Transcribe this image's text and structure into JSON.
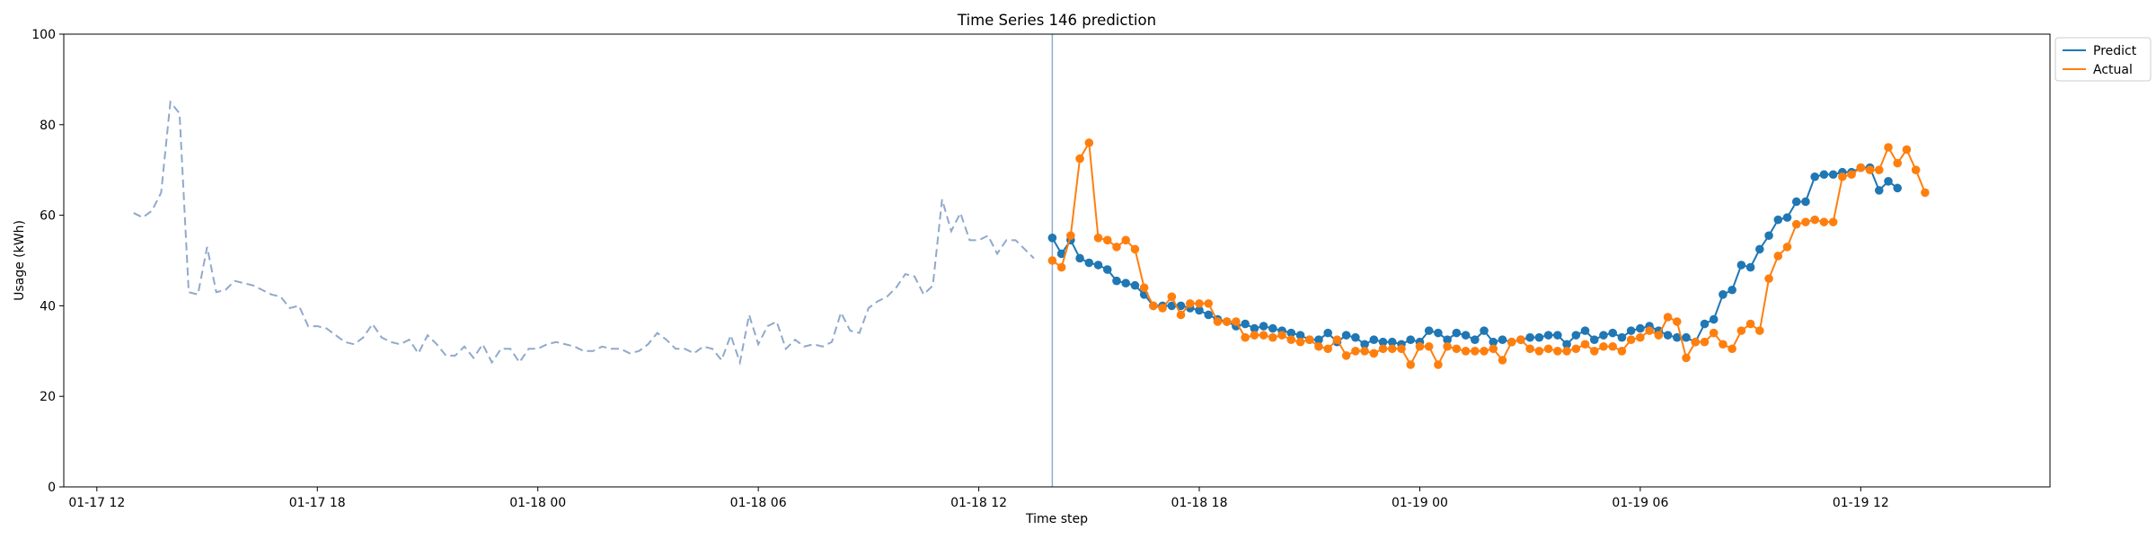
{
  "chart_data": {
    "type": "line",
    "title": "Time Series 146 prediction",
    "xlabel": "Time step",
    "ylabel": "Usage (kWh)",
    "ylim": [
      0,
      100
    ],
    "yticks": [
      0,
      20,
      40,
      60,
      80,
      100
    ],
    "xlim": [
      "2024-01-17 11:06",
      "2024-01-19 17:09"
    ],
    "xticks": [
      {
        "t": "2024-01-17 12:00",
        "label": "01-17 12"
      },
      {
        "t": "2024-01-17 18:00",
        "label": "01-17 18"
      },
      {
        "t": "2024-01-18 00:00",
        "label": "01-18 00"
      },
      {
        "t": "2024-01-18 06:00",
        "label": "01-18 06"
      },
      {
        "t": "2024-01-18 12:00",
        "label": "01-18 12"
      },
      {
        "t": "2024-01-18 18:00",
        "label": "01-18 18"
      },
      {
        "t": "2024-01-19 00:00",
        "label": "01-19 00"
      },
      {
        "t": "2024-01-19 06:00",
        "label": "01-19 06"
      },
      {
        "t": "2024-01-19 12:00",
        "label": "01-19 12"
      }
    ],
    "split_time": "2024-01-18 14:00",
    "legend": {
      "position": "top-right",
      "entries": [
        "Predict",
        "Actual"
      ]
    },
    "colors": {
      "predict": "#1f77b4",
      "actual": "#ff7f0e",
      "history": "#90a9cc",
      "split": "#8faad6"
    },
    "history": {
      "start": "2024-01-17 13:00",
      "step_minutes": 15,
      "values": [
        60.5,
        59.5,
        61,
        65,
        85,
        82.5,
        43,
        42.5,
        53,
        43,
        43.5,
        45.5,
        45,
        44.5,
        43.5,
        42.5,
        42,
        39.5,
        40,
        35.5,
        35.5,
        35,
        33.5,
        32,
        31.5,
        33,
        36,
        33,
        32,
        31.5,
        32.5,
        29.5,
        33.5,
        31.5,
        29,
        29,
        31,
        28.5,
        31.5,
        27.5,
        30.5,
        30.5,
        27.5,
        30.5,
        30.5,
        31.5,
        32,
        31.5,
        31,
        30,
        30,
        31,
        30.5,
        30.5,
        29.5,
        30,
        31.5,
        34,
        32.5,
        30.5,
        30.5,
        29.5,
        31,
        30.5,
        28,
        33.5,
        27.5,
        38,
        31.5,
        35.5,
        36.5,
        30.5,
        32.5,
        31,
        31.5,
        31,
        32,
        38.5,
        34.5,
        34,
        39.5,
        41,
        42,
        44,
        47,
        46.5,
        42.5,
        44.5,
        63.5,
        56.5,
        60.5,
        54.5,
        54.5,
        55.5,
        51.5,
        54.5,
        54.5,
        52.5,
        50.5
      ]
    },
    "series": [
      {
        "name": "Predict",
        "start": "2024-01-18 14:00",
        "step_minutes": 15,
        "values": [
          55,
          51.5,
          54.5,
          50.5,
          49.5,
          49,
          48,
          45.5,
          45,
          44.5,
          42.5,
          40,
          40,
          40,
          40,
          39.5,
          39,
          38,
          37,
          36.5,
          35.5,
          36,
          35,
          35.5,
          35,
          34.5,
          34,
          33.5,
          32.5,
          32.5,
          34,
          32,
          33.5,
          33,
          31.5,
          32.5,
          32,
          32,
          31.5,
          32.5,
          32,
          34.5,
          34,
          32.5,
          34,
          33.5,
          32.5,
          34.5,
          32,
          32.5,
          32,
          32.5,
          33,
          33,
          33.5,
          33.5,
          31.5,
          33.5,
          34.5,
          32.5,
          33.5,
          34,
          33,
          34.5,
          35,
          35.5,
          34.5,
          33.5,
          33,
          33,
          32,
          36,
          37,
          42.5,
          43.5,
          49,
          48.5,
          52.5,
          55.5,
          59,
          59.5,
          63,
          63,
          68.5,
          69,
          69,
          69.5,
          69.5,
          70.5,
          70.5,
          65.5,
          67.5,
          66
        ]
      },
      {
        "name": "Actual",
        "start": "2024-01-18 14:00",
        "step_minutes": 15,
        "values": [
          50,
          48.5,
          55.5,
          72.5,
          76,
          55,
          54.5,
          53,
          54.5,
          52.5,
          44,
          40,
          39.5,
          42,
          38,
          40.5,
          40.5,
          40.5,
          36.5,
          36.5,
          36.5,
          33,
          33.5,
          33.5,
          33,
          33.5,
          32.5,
          32,
          32.5,
          31,
          30.5,
          32.5,
          29,
          30,
          30,
          29.5,
          30.5,
          30.5,
          30.5,
          27,
          31,
          31,
          27,
          31,
          30.5,
          30,
          30,
          30,
          30.5,
          28,
          32,
          32.5,
          30.5,
          30,
          30.5,
          30,
          30,
          30.5,
          31.5,
          30,
          31,
          31,
          30,
          32.5,
          33,
          34.5,
          33.5,
          37.5,
          36.5,
          28.5,
          32,
          32,
          34,
          31.5,
          30.5,
          34.5,
          36,
          34.5,
          46,
          51,
          53,
          58,
          58.5,
          59,
          58.5,
          58.5,
          68.5,
          69,
          70.5,
          70,
          70,
          75,
          71.5,
          74.5,
          70,
          65
        ]
      }
    ]
  }
}
